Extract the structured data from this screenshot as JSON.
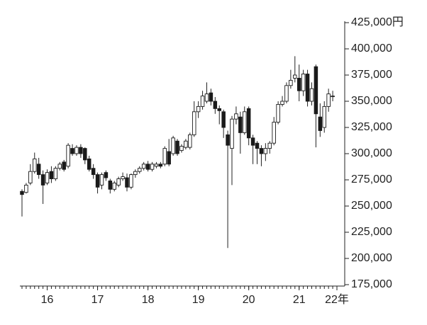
{
  "chart_data": {
    "type": "candlestick",
    "ylim": [
      175000,
      425000
    ],
    "yticks": [
      {
        "value": 425000,
        "label": "425,000円"
      },
      {
        "value": 400000,
        "label": "400,000"
      },
      {
        "value": 375000,
        "label": "375,000"
      },
      {
        "value": 350000,
        "label": "350,000"
      },
      {
        "value": 325000,
        "label": "325,000"
      },
      {
        "value": 300000,
        "label": "300,000"
      },
      {
        "value": 275000,
        "label": "275,000"
      },
      {
        "value": 250000,
        "label": "250,000"
      },
      {
        "value": 225000,
        "label": "225,000"
      },
      {
        "value": 200000,
        "label": "200,000"
      },
      {
        "value": 175000,
        "label": "175,000"
      }
    ],
    "xticks": [
      {
        "value": 6,
        "label": "16"
      },
      {
        "value": 18,
        "label": "17"
      },
      {
        "value": 30,
        "label": "18"
      },
      {
        "value": 42,
        "label": "19"
      },
      {
        "value": 54,
        "label": "20"
      },
      {
        "value": 66,
        "label": "21"
      },
      {
        "value": 75,
        "label": "22年"
      }
    ],
    "up_color": "#ffffff",
    "down_color": "#1a1a1a",
    "open": [
      264000,
      263000,
      272000,
      283000,
      290000,
      280000,
      272000,
      283000,
      276000,
      286000,
      292000,
      288000,
      305000,
      300000,
      306000,
      305000,
      295000,
      286000,
      280000,
      270000,
      282000,
      274000,
      266000,
      270000,
      276000,
      277000,
      268000,
      280000,
      283000,
      286000,
      290000,
      285000,
      288000,
      290000,
      290000,
      302000,
      300000,
      312000,
      303000,
      306000,
      306000,
      318000,
      340000,
      345000,
      350000,
      358000,
      350000,
      343000,
      340000,
      318000,
      305000,
      333000,
      335000,
      320000,
      343000,
      315000,
      310000,
      305000,
      300000,
      305000,
      310000,
      330000,
      347000,
      350000,
      365000,
      372000,
      372000,
      360000,
      376000,
      350000,
      383000,
      335000,
      325000,
      345000,
      355000
    ],
    "high": [
      266000,
      272000,
      290000,
      301000,
      296000,
      284000,
      285000,
      288000,
      288000,
      292000,
      294000,
      310000,
      309000,
      308000,
      309000,
      306000,
      298000,
      290000,
      282000,
      282000,
      284000,
      276000,
      274000,
      278000,
      282000,
      281000,
      281000,
      285000,
      288000,
      292000,
      293000,
      292000,
      292000,
      292000,
      307000,
      314000,
      317000,
      314000,
      309000,
      314000,
      320000,
      350000,
      350000,
      360000,
      368000,
      362000,
      354000,
      346000,
      342000,
      322000,
      336000,
      345000,
      340000,
      345000,
      345000,
      318000,
      312000,
      308000,
      310000,
      312000,
      335000,
      350000,
      355000,
      368000,
      380000,
      393000,
      385000,
      380000,
      380000,
      368000,
      385000,
      348000,
      350000,
      362000,
      360000
    ],
    "low": [
      240000,
      262000,
      270000,
      281000,
      276000,
      252000,
      270000,
      272000,
      274000,
      284000,
      283000,
      286000,
      298000,
      298000,
      296000,
      290000,
      283000,
      276000,
      262000,
      266000,
      274000,
      262000,
      264000,
      268000,
      274000,
      264000,
      266000,
      277000,
      281000,
      284000,
      283000,
      283000,
      286000,
      286000,
      288000,
      288000,
      298000,
      298000,
      301000,
      304000,
      304000,
      316000,
      334000,
      342000,
      348000,
      346000,
      338000,
      328000,
      315000,
      210000,
      270000,
      328000,
      300000,
      318000,
      308000,
      290000,
      290000,
      288000,
      293000,
      300000,
      308000,
      328000,
      345000,
      348000,
      362000,
      368000,
      350000,
      355000,
      345000,
      346000,
      306000,
      316000,
      320000,
      340000,
      350000
    ],
    "close": [
      261000,
      270000,
      283000,
      295000,
      280000,
      270000,
      282000,
      276000,
      286000,
      290000,
      285000,
      308000,
      300000,
      306000,
      300000,
      294000,
      285000,
      280000,
      268000,
      280000,
      277000,
      266000,
      272000,
      276000,
      278000,
      268000,
      280000,
      283000,
      286000,
      290000,
      285000,
      290000,
      290000,
      288000,
      305000,
      290000,
      315000,
      300000,
      307000,
      312000,
      318000,
      340000,
      345000,
      355000,
      357000,
      350000,
      343000,
      341000,
      325000,
      308000,
      333000,
      338000,
      320000,
      340000,
      315000,
      308000,
      305000,
      300000,
      305000,
      310000,
      330000,
      347000,
      350000,
      365000,
      370000,
      375000,
      360000,
      376000,
      350000,
      362000,
      338000,
      322000,
      345000,
      357000,
      355000
    ]
  }
}
